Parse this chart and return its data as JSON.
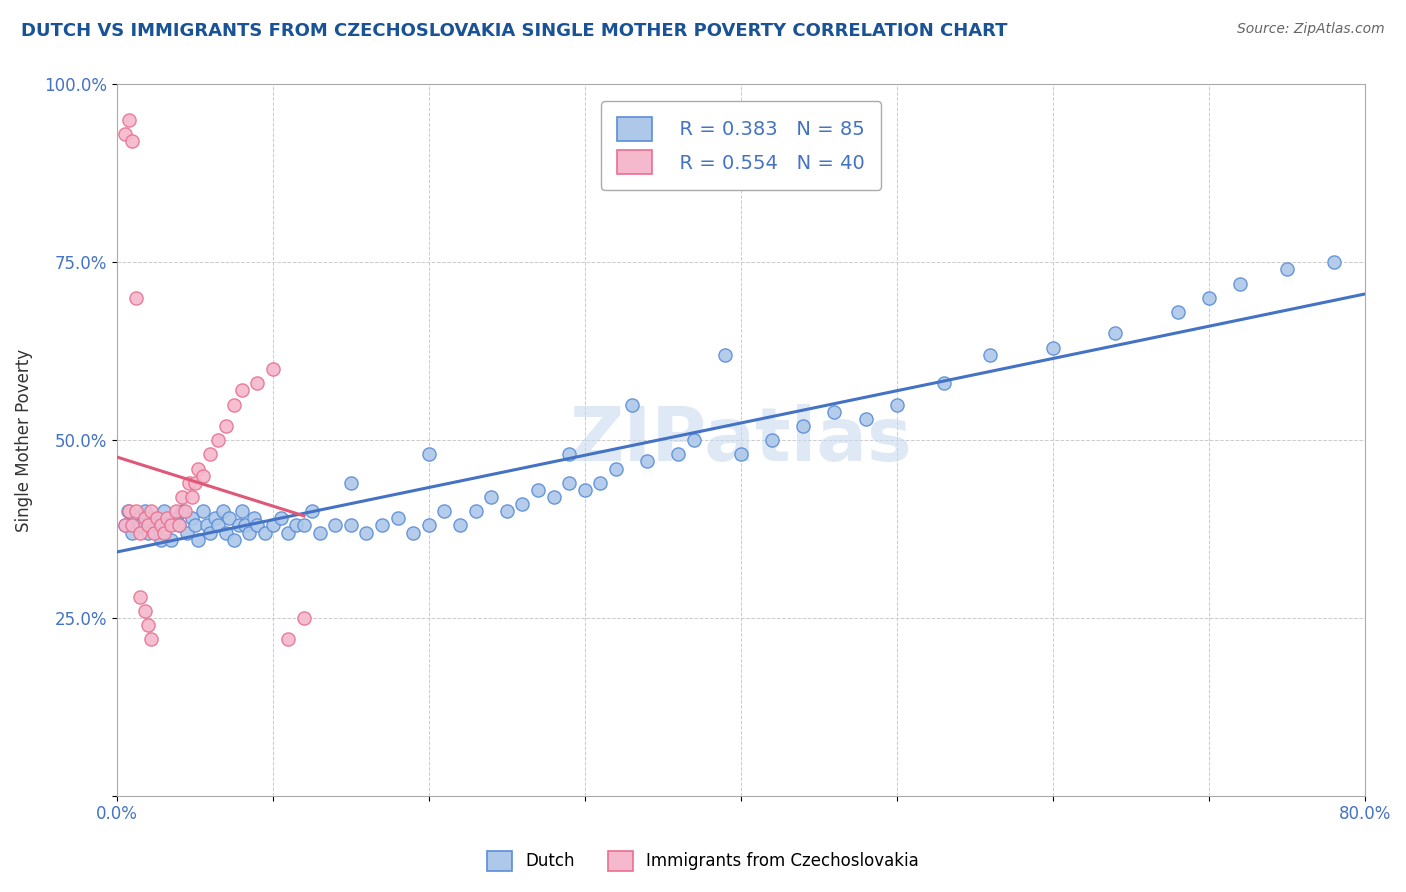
{
  "title": "DUTCH VS IMMIGRANTS FROM CZECHOSLOVAKIA SINGLE MOTHER POVERTY CORRELATION CHART",
  "source": "Source: ZipAtlas.com",
  "ylabel": "Single Mother Poverty",
  "xlim": [
    0.0,
    0.8
  ],
  "ylim": [
    0.0,
    1.0
  ],
  "legend_R1": "R = 0.383",
  "legend_N1": "N = 85",
  "legend_R2": "R = 0.554",
  "legend_N2": "N = 40",
  "dutch_color": "#adc8e8",
  "czech_color": "#f5b8cc",
  "dutch_edge_color": "#5b8dd9",
  "czech_edge_color": "#e87090",
  "dutch_line_color": "#4472c4",
  "czech_line_color": "#e05878",
  "legend_text_color": "#4472c4",
  "title_color": "#1a5296",
  "watermark": "ZIPatlas",
  "dutch_x": [
    0.005,
    0.007,
    0.01,
    0.012,
    0.015,
    0.018,
    0.02,
    0.022,
    0.025,
    0.028,
    0.03,
    0.032,
    0.035,
    0.038,
    0.04,
    0.042,
    0.045,
    0.048,
    0.05,
    0.052,
    0.055,
    0.058,
    0.06,
    0.063,
    0.065,
    0.068,
    0.07,
    0.072,
    0.075,
    0.078,
    0.08,
    0.082,
    0.085,
    0.088,
    0.09,
    0.095,
    0.1,
    0.105,
    0.11,
    0.115,
    0.12,
    0.125,
    0.13,
    0.14,
    0.15,
    0.16,
    0.17,
    0.18,
    0.19,
    0.2,
    0.21,
    0.22,
    0.23,
    0.24,
    0.25,
    0.26,
    0.27,
    0.28,
    0.29,
    0.3,
    0.31,
    0.32,
    0.34,
    0.36,
    0.37,
    0.4,
    0.42,
    0.44,
    0.46,
    0.48,
    0.5,
    0.53,
    0.56,
    0.6,
    0.64,
    0.68,
    0.7,
    0.72,
    0.75,
    0.78,
    0.33,
    0.29,
    0.2,
    0.15,
    0.39
  ],
  "dutch_y": [
    0.38,
    0.4,
    0.37,
    0.39,
    0.38,
    0.4,
    0.37,
    0.39,
    0.38,
    0.36,
    0.4,
    0.38,
    0.36,
    0.39,
    0.38,
    0.4,
    0.37,
    0.39,
    0.38,
    0.36,
    0.4,
    0.38,
    0.37,
    0.39,
    0.38,
    0.4,
    0.37,
    0.39,
    0.36,
    0.38,
    0.4,
    0.38,
    0.37,
    0.39,
    0.38,
    0.37,
    0.38,
    0.39,
    0.37,
    0.38,
    0.38,
    0.4,
    0.37,
    0.38,
    0.38,
    0.37,
    0.38,
    0.39,
    0.37,
    0.38,
    0.4,
    0.38,
    0.4,
    0.42,
    0.4,
    0.41,
    0.43,
    0.42,
    0.44,
    0.43,
    0.44,
    0.46,
    0.47,
    0.48,
    0.5,
    0.48,
    0.5,
    0.52,
    0.54,
    0.53,
    0.55,
    0.58,
    0.62,
    0.63,
    0.65,
    0.68,
    0.7,
    0.72,
    0.74,
    0.75,
    0.55,
    0.48,
    0.48,
    0.44,
    0.62
  ],
  "czech_x": [
    0.005,
    0.008,
    0.01,
    0.012,
    0.015,
    0.018,
    0.02,
    0.022,
    0.024,
    0.026,
    0.028,
    0.03,
    0.032,
    0.035,
    0.038,
    0.04,
    0.042,
    0.044,
    0.046,
    0.048,
    0.05,
    0.052,
    0.055,
    0.06,
    0.065,
    0.07,
    0.075,
    0.08,
    0.09,
    0.1,
    0.11,
    0.12,
    0.005,
    0.008,
    0.01,
    0.012,
    0.015,
    0.018,
    0.02,
    0.022
  ],
  "czech_y": [
    0.38,
    0.4,
    0.38,
    0.4,
    0.37,
    0.39,
    0.38,
    0.4,
    0.37,
    0.39,
    0.38,
    0.37,
    0.39,
    0.38,
    0.4,
    0.38,
    0.42,
    0.4,
    0.44,
    0.42,
    0.44,
    0.46,
    0.45,
    0.48,
    0.5,
    0.52,
    0.55,
    0.57,
    0.58,
    0.6,
    0.22,
    0.25,
    0.93,
    0.95,
    0.92,
    0.7,
    0.28,
    0.26,
    0.24,
    0.22
  ]
}
